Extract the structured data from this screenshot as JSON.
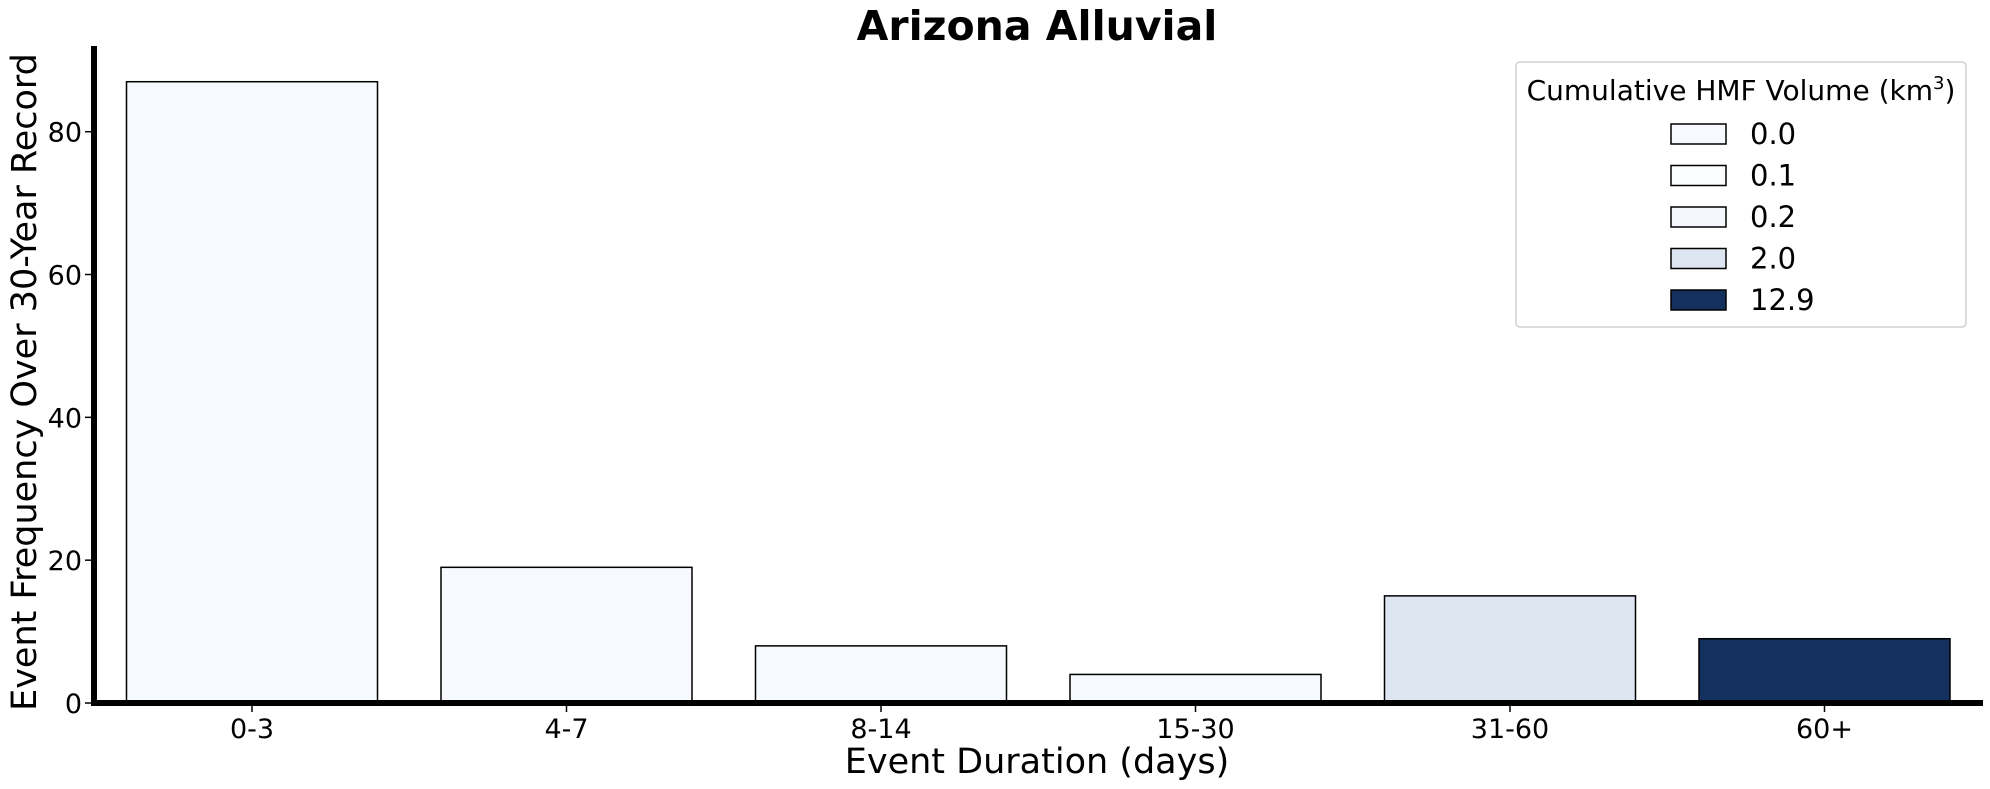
{
  "chart_data": {
    "type": "bar",
    "title": "Arizona Alluvial",
    "xlabel": "Event Duration (days)",
    "ylabel": "Event Frequency Over 30-Year Record",
    "categories": [
      "0-3",
      "4-7",
      "8-14",
      "15-30",
      "31-60",
      "60+"
    ],
    "values": [
      87,
      19,
      8,
      4,
      15,
      9
    ],
    "bar_colors": [
      "#f6f9fd",
      "#f6f9fd",
      "#f6f9fd",
      "#f6f9fd",
      "#dde6f0",
      "#14305f"
    ],
    "ylim": [
      0,
      92
    ],
    "yticks": [
      0,
      20,
      40,
      60,
      80
    ],
    "grid": false,
    "legend": {
      "title_prefix": "Cumulative HMF Volume (km",
      "title_sup": "3",
      "title_suffix": ")",
      "placement": "top-right",
      "entries": [
        {
          "label": "0.0",
          "color": "#f6f9fd"
        },
        {
          "label": "0.1",
          "color": "#fbfcfe"
        },
        {
          "label": "0.2",
          "color": "#f4f7fb"
        },
        {
          "label": "2.0",
          "color": "#dde6f0"
        },
        {
          "label": "12.9",
          "color": "#14305f"
        }
      ]
    }
  }
}
